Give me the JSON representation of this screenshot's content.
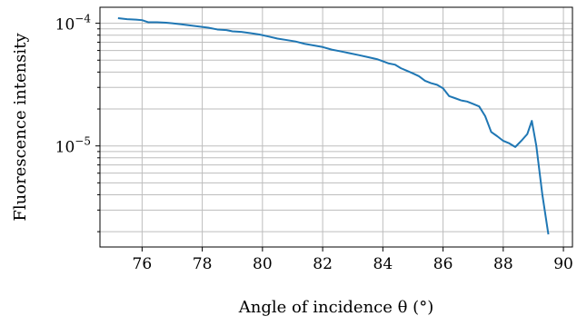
{
  "chart_data": {
    "type": "line",
    "title": "",
    "xlabel": "Angle of incidence θ (°)",
    "ylabel": "Fluorescence intensity",
    "xlim": [
      74.6,
      90.3
    ],
    "ylim": [
      1.5e-06,
      0.000135
    ],
    "yscale": "log",
    "grid": true,
    "line_color": "#1f77b4",
    "x_ticks": [
      76,
      78,
      80,
      82,
      84,
      86,
      88,
      90
    ],
    "x_tick_labels": [
      "76",
      "78",
      "80",
      "82",
      "84",
      "86",
      "88",
      "90"
    ],
    "y_ticks": [
      1e-05,
      0.0001
    ],
    "y_tick_labels": [
      {
        "base": "10",
        "exp": "−5"
      },
      {
        "base": "10",
        "exp": "−4"
      }
    ],
    "series": [
      {
        "x": [
          75.2,
          75.5,
          75.8,
          76.0,
          76.2,
          76.5,
          76.8,
          77.0,
          77.3,
          77.6,
          77.9,
          78.2,
          78.5,
          78.8,
          79.0,
          79.3,
          79.6,
          79.9,
          80.2,
          80.5,
          80.8,
          81.1,
          81.4,
          81.7,
          82.0,
          82.3,
          82.6,
          82.9,
          83.2,
          83.5,
          83.8,
          84.0,
          84.2,
          84.4,
          84.6,
          84.8,
          85.0,
          85.2,
          85.4,
          85.6,
          85.8,
          86.0,
          86.2,
          86.4,
          86.6,
          86.8,
          87.0,
          87.2,
          87.4,
          87.6,
          87.8,
          88.0,
          88.2,
          88.4,
          88.6,
          88.8,
          88.95,
          89.1,
          89.3,
          89.5
        ],
        "y": [
          0.00011,
          0.000108,
          0.000107,
          0.000106,
          0.000102,
          0.000102,
          0.000101,
          0.0001,
          9.8e-05,
          9.6e-05,
          9.4e-05,
          9.2e-05,
          8.9e-05,
          8.8e-05,
          8.6e-05,
          8.5e-05,
          8.3e-05,
          8.1e-05,
          7.8e-05,
          7.5e-05,
          7.3e-05,
          7.1e-05,
          6.8e-05,
          6.6e-05,
          6.4e-05,
          6.1e-05,
          5.9e-05,
          5.7e-05,
          5.5e-05,
          5.3e-05,
          5.1e-05,
          4.9e-05,
          4.7e-05,
          4.6e-05,
          4.3e-05,
          4.1e-05,
          3.9e-05,
          3.7e-05,
          3.4e-05,
          3.25e-05,
          3.15e-05,
          2.95e-05,
          2.55e-05,
          2.45e-05,
          2.35e-05,
          2.3e-05,
          2.2e-05,
          2.1e-05,
          1.75e-05,
          1.3e-05,
          1.2e-05,
          1.1e-05,
          1.05e-05,
          9.8e-06,
          1.1e-05,
          1.25e-05,
          1.6e-05,
          1e-05,
          4e-06,
          1.9e-06
        ]
      }
    ]
  }
}
